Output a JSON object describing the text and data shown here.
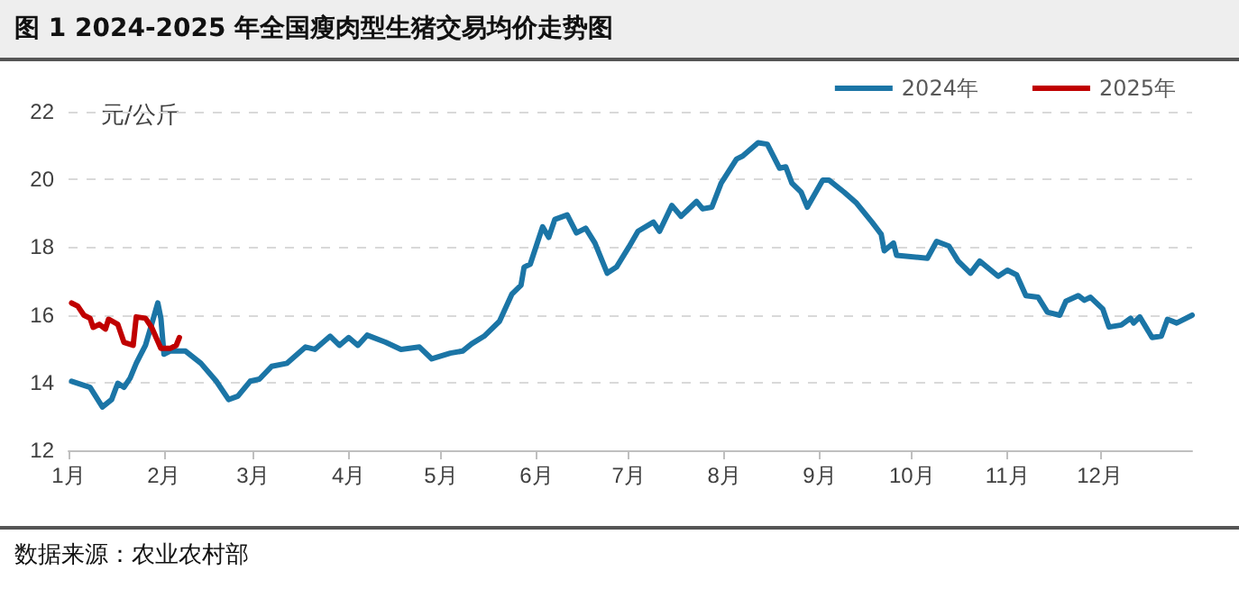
{
  "chart_data": {
    "type": "line",
    "title": "图 1  2024-2025 年全国瘦肉型生猪交易均价走势图",
    "ylabel": "元/公斤",
    "annotations": [
      "数据来源：农业农村部"
    ],
    "xlim": [
      "--01-01",
      "--12-31"
    ],
    "xticks": [
      {
        "value": "--01-01",
        "label": "1月"
      },
      {
        "value": "--02-01",
        "label": "2月"
      },
      {
        "value": "--03-01",
        "label": "3月"
      },
      {
        "value": "--04-01",
        "label": "4月"
      },
      {
        "value": "--05-01",
        "label": "5月"
      },
      {
        "value": "--06-01",
        "label": "6月"
      },
      {
        "value": "--07-01",
        "label": "7月"
      },
      {
        "value": "--08-01",
        "label": "8月"
      },
      {
        "value": "--09-01",
        "label": "9月"
      },
      {
        "value": "--10-01",
        "label": "10月"
      },
      {
        "value": "--11-01",
        "label": "11月"
      },
      {
        "value": "--12-01",
        "label": "12月"
      }
    ],
    "ylim": [
      12,
      22
    ],
    "yticks": [
      12,
      14,
      16,
      18,
      20,
      22
    ],
    "grid": "y",
    "legend": "top right",
    "marker": "none",
    "line_style": "solid",
    "series": [
      {
        "name": "2024年",
        "color": "#1b75a6",
        "x": [
          "--01-02",
          "--01-08",
          "--01-12",
          "--01-15",
          "--01-17",
          "--01-19",
          "--01-21",
          "--01-23",
          "--01-24",
          "--01-26",
          "--01-28",
          "--01-30",
          "--01-31",
          "--02-01",
          "--02-03",
          "--02-08",
          "--02-13",
          "--02-18",
          "--02-22",
          "--02-25",
          "--02-29",
          "--03-03",
          "--03-07",
          "--03-12",
          "--03-18",
          "--03-21",
          "--03-26",
          "--03-29",
          "--04-01",
          "--04-04",
          "--04-07",
          "--04-13",
          "--04-18",
          "--04-24",
          "--04-28",
          "--05-04",
          "--05-08",
          "--05-11",
          "--05-15",
          "--05-20",
          "--05-24",
          "--05-27",
          "--05-28",
          "--05-30",
          "--06-03",
          "--06-05",
          "--06-07",
          "--06-11",
          "--06-14",
          "--06-17",
          "--06-20",
          "--06-24",
          "--06-27",
          "--07-01",
          "--07-04",
          "--07-09",
          "--07-11",
          "--07-15",
          "--07-18",
          "--07-23",
          "--07-25",
          "--07-28",
          "--07-31",
          "--08-05",
          "--08-07",
          "--08-12",
          "--08-15",
          "--08-19",
          "--08-21",
          "--08-23",
          "--08-26",
          "--08-28",
          "--09-02",
          "--09-04",
          "--09-09",
          "--09-13",
          "--09-18",
          "--09-21",
          "--09-22",
          "--09-25",
          "--09-26",
          "--10-06",
          "--10-09",
          "--10-13",
          "--10-16",
          "--10-20",
          "--10-23",
          "--10-29",
          "--11-01",
          "--11-04",
          "--11-07",
          "--11-11",
          "--11-14",
          "--11-18",
          "--11-20",
          "--11-24",
          "--11-26",
          "--11-28",
          "--12-02",
          "--12-04",
          "--12-08",
          "--12-11",
          "--12-12",
          "--12-14",
          "--12-18",
          "--12-21",
          "--12-23",
          "--12-26",
          "--12-31"
        ],
        "values": [
          14.04,
          13.86,
          13.28,
          13.5,
          13.98,
          13.86,
          14.13,
          14.57,
          14.75,
          15.1,
          15.72,
          16.35,
          15.9,
          14.84,
          14.93,
          14.93,
          14.57,
          14.04,
          13.5,
          13.6,
          14.04,
          14.1,
          14.48,
          14.57,
          15.05,
          14.98,
          15.37,
          15.1,
          15.33,
          15.1,
          15.4,
          15.19,
          14.98,
          15.05,
          14.7,
          14.87,
          14.93,
          15.15,
          15.37,
          15.81,
          16.61,
          16.88,
          17.41,
          17.5,
          18.6,
          18.29,
          18.82,
          18.95,
          18.42,
          18.56,
          18.12,
          17.23,
          17.41,
          18.0,
          18.47,
          18.74,
          18.47,
          19.23,
          18.91,
          19.35,
          19.13,
          19.18,
          19.89,
          20.6,
          20.69,
          21.08,
          21.04,
          20.33,
          20.37,
          19.89,
          19.62,
          19.18,
          19.98,
          19.98,
          19.62,
          19.3,
          18.74,
          18.38,
          17.89,
          18.12,
          17.76,
          17.67,
          18.17,
          18.03,
          17.59,
          17.23,
          17.59,
          17.14,
          17.32,
          17.18,
          16.57,
          16.52,
          16.08,
          15.99,
          16.4,
          16.57,
          16.43,
          16.52,
          16.17,
          15.64,
          15.7,
          15.9,
          15.76,
          15.94,
          15.33,
          15.37,
          15.87,
          15.76,
          15.99
        ]
      },
      {
        "name": "2025年",
        "color": "#c00000",
        "x": [
          "--01-02",
          "--01-04",
          "--01-06",
          "--01-08",
          "--01-09",
          "--01-11",
          "--01-13",
          "--01-14",
          "--01-17",
          "--01-19",
          "--01-22",
          "--01-23",
          "--01-26",
          "--01-28",
          "--01-31",
          "--02-03",
          "--02-05",
          "--02-06"
        ],
        "values": [
          16.35,
          16.26,
          15.99,
          15.9,
          15.63,
          15.72,
          15.58,
          15.87,
          15.72,
          15.19,
          15.1,
          15.94,
          15.9,
          15.63,
          15.01,
          15.01,
          15.1,
          15.33
        ]
      }
    ]
  }
}
